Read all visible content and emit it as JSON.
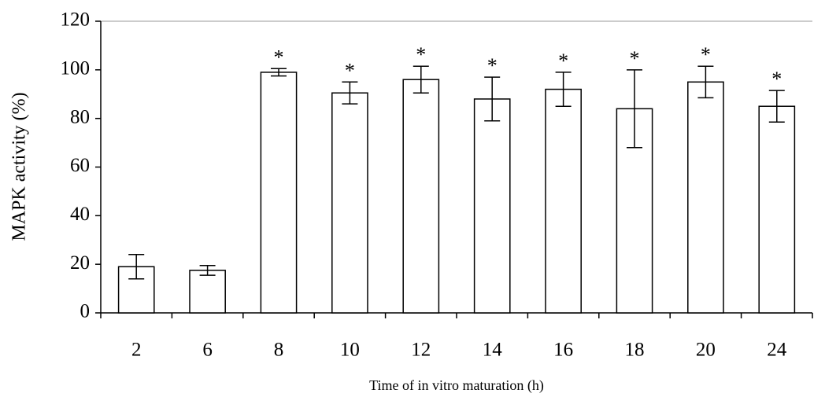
{
  "chart_data": {
    "type": "bar",
    "xlabel": "Time of in vitro maturation (h)",
    "ylabel": "MAPK activity (%)",
    "categories": [
      "2",
      "6",
      "8",
      "10",
      "12",
      "14",
      "16",
      "18",
      "20",
      "24"
    ],
    "values": [
      19,
      17.5,
      99,
      90.5,
      96,
      88,
      92,
      84,
      95,
      85
    ],
    "errors": [
      5,
      2,
      1.5,
      4.5,
      5.5,
      9,
      7,
      16,
      6.5,
      6.5
    ],
    "significance": [
      null,
      null,
      "*",
      "*",
      "*",
      "*",
      "*",
      "*",
      "*",
      "*"
    ],
    "color": "#ffffff",
    "ylim": [
      0,
      120
    ],
    "yticks": [
      0,
      20,
      40,
      60,
      80,
      100,
      120
    ]
  }
}
